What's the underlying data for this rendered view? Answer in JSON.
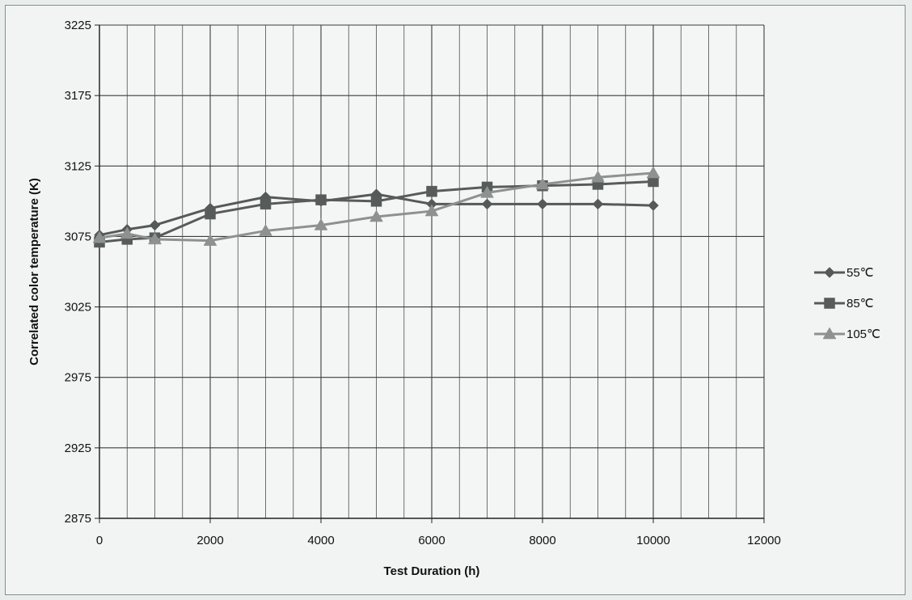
{
  "chart_data": {
    "type": "line",
    "xlabel": "Test Duration (h)",
    "ylabel": "Correlated color temperature (K)",
    "xlim": [
      0,
      12000
    ],
    "ylim": [
      2875,
      3225
    ],
    "x_major_ticks": [
      0,
      2000,
      4000,
      6000,
      8000,
      10000,
      12000
    ],
    "y_major_ticks": [
      2875,
      2925,
      2975,
      3025,
      3075,
      3125,
      3175,
      3225
    ],
    "grid": true,
    "legend_position": "right",
    "series": [
      {
        "name": "55℃",
        "marker": "diamond",
        "color": "#555a58",
        "x": [
          0,
          500,
          1000,
          2000,
          3000,
          4000,
          5000,
          6000,
          7000,
          8000,
          9000,
          10000
        ],
        "y": [
          3076,
          3080,
          3083,
          3095,
          3103,
          3100,
          3105,
          3098,
          3098,
          3098,
          3098,
          3097
        ]
      },
      {
        "name": "85℃",
        "marker": "square",
        "color": "#575c5a",
        "x": [
          0,
          500,
          1000,
          2000,
          3000,
          4000,
          5000,
          6000,
          7000,
          8000,
          9000,
          10000
        ],
        "y": [
          3071,
          3073,
          3074,
          3091,
          3098,
          3101,
          3100,
          3107,
          3110,
          3111,
          3112,
          3114
        ]
      },
      {
        "name": "105℃",
        "marker": "triangle",
        "color": "#8d9290",
        "x": [
          0,
          500,
          1000,
          2000,
          3000,
          4000,
          5000,
          6000,
          7000,
          8000,
          9000,
          10000
        ],
        "y": [
          3074,
          3077,
          3073,
          3072,
          3079,
          3083,
          3089,
          3093,
          3106,
          3112,
          3117,
          3120
        ]
      }
    ]
  }
}
